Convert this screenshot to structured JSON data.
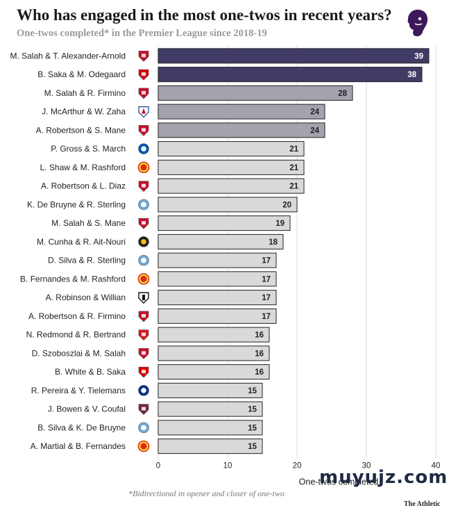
{
  "header": {
    "title": "Who has engaged in the most one-twos in recent years?",
    "subtitle": "One-twos completed* in the Premier League since 2018-19"
  },
  "footnote": "*Bidirectional in opener and closer of one-two",
  "watermark": "muyujz.com",
  "source": "The Athletic",
  "colors": {
    "top_bar": "#403c66",
    "mid_bar": "#a4a2ad",
    "low_bar": "#d9d9d9",
    "bar_stroke": "#222222"
  },
  "chart_data": {
    "type": "bar",
    "orientation": "horizontal",
    "title": "Who has engaged in the most one-twos in recent years?",
    "subtitle": "One-twos completed* in the Premier League since 2018-19",
    "xlabel": "One-twos completed",
    "ylabel": "",
    "xlim": [
      0,
      40
    ],
    "xticks": [
      "0",
      "10",
      "20",
      "30",
      "40"
    ],
    "grid": true,
    "categories": [
      "M. Salah & T. Alexander-Arnold",
      "B. Saka & M. Odegaard",
      "M. Salah & R. Firmino",
      "J. McArthur & W. Zaha",
      "A. Robertson & S. Mane",
      "P. Gross & S. March",
      "L. Shaw & M. Rashford",
      "A. Robertson & L. Diaz",
      "K. De Bruyne & R. Sterling",
      "M. Salah & S. Mane",
      "M. Cunha & R. Ait-Nouri",
      "D. Silva & R. Sterling",
      "B. Fernandes & M. Rashford",
      "A. Robinson & Willian",
      "A. Robertson & R. Firmino",
      "N. Redmond & R. Bertrand",
      "D. Szoboszlai & M. Salah",
      "B. White & B. Saka",
      "R. Pereira & Y. Tielemans",
      "J. Bowen & V. Coufal",
      "B. Silva & K. De Bruyne",
      "A. Martial & B. Fernandes"
    ],
    "values": [
      39,
      38,
      28,
      24,
      24,
      21,
      21,
      21,
      20,
      19,
      18,
      17,
      17,
      17,
      17,
      16,
      16,
      16,
      15,
      15,
      15,
      15
    ],
    "club_icons": [
      "liverpool-crest",
      "arsenal-crest",
      "liverpool-crest",
      "crystal-palace-crest",
      "liverpool-crest",
      "brighton-crest",
      "man-united-crest",
      "liverpool-crest",
      "man-city-crest",
      "liverpool-crest",
      "wolves-crest",
      "man-city-crest",
      "man-united-crest",
      "fulham-crest",
      "liverpool-crest",
      "southampton-crest",
      "liverpool-crest",
      "arsenal-crest",
      "leicester-crest",
      "west-ham-crest",
      "man-city-crest",
      "man-united-crest"
    ],
    "club_colors": {
      "liverpool-crest": "#c8102e",
      "arsenal-crest": "#db0007",
      "crystal-palace-crest": "#1b458f",
      "brighton-crest": "#0057b8",
      "man-united-crest": "#da291c",
      "man-city-crest": "#6cabdd",
      "wolves-crest": "#fdb913",
      "fulham-crest": "#ffffff",
      "southampton-crest": "#d71920",
      "leicester-crest": "#003090",
      "west-ham-crest": "#7a263a"
    }
  }
}
